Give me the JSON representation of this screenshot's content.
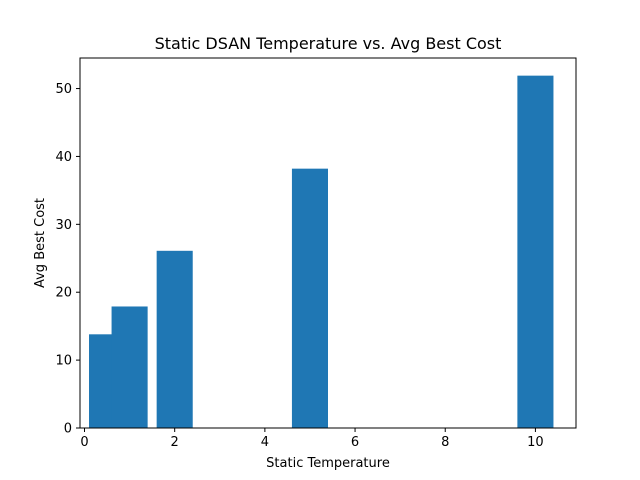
{
  "chart_data": {
    "type": "bar",
    "title": "Static DSAN Temperature vs. Avg Best Cost",
    "xlabel": "Static Temperature",
    "ylabel": "Avg Best Cost",
    "xlim": [
      -0.1,
      10.9
    ],
    "ylim": [
      0,
      54.5
    ],
    "xticks": [
      0,
      2,
      4,
      6,
      8,
      10
    ],
    "yticks": [
      0,
      10,
      20,
      30,
      40,
      50
    ],
    "bar_width": 0.8,
    "bar_color": "#1f77b4",
    "x": [
      0.5,
      1,
      2,
      5,
      10
    ],
    "values": [
      13.8,
      17.9,
      26.1,
      38.2,
      51.9
    ],
    "grid": false,
    "legend": "none"
  }
}
